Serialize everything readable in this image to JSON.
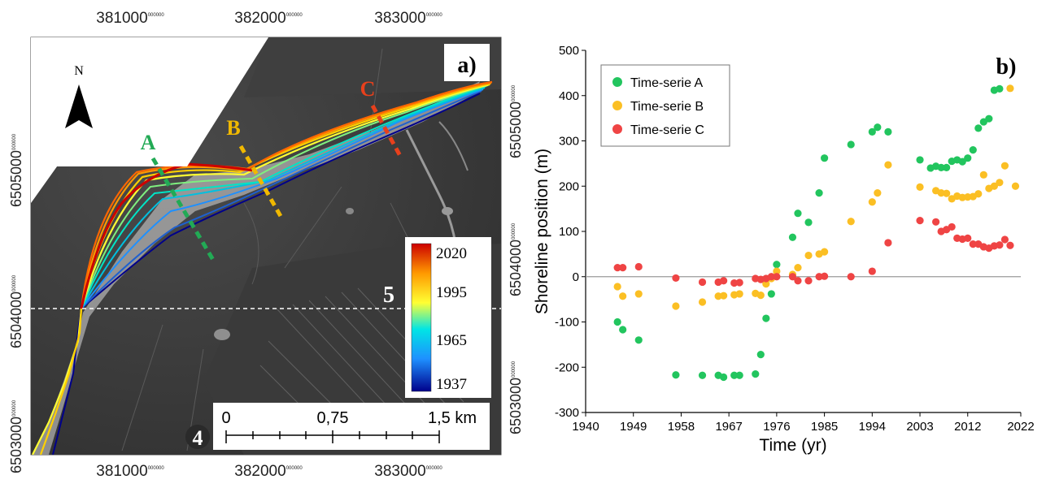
{
  "map": {
    "panel_label": "a)",
    "north_label": "N",
    "x_ticks": [
      {
        "main": "381000",
        "sup": "000000"
      },
      {
        "main": "382000",
        "sup": "000000"
      },
      {
        "main": "383000",
        "sup": "000000"
      }
    ],
    "y_ticks": [
      {
        "main": "6505000",
        "sup": "000000"
      },
      {
        "main": "6504000",
        "sup": "000000"
      },
      {
        "main": "6503000",
        "sup": "000000"
      }
    ],
    "transects": [
      {
        "label": "A",
        "color": "#22aa55"
      },
      {
        "label": "B",
        "color": "#f0b800"
      },
      {
        "label": "C",
        "color": "#e8401c"
      }
    ],
    "colorbar": {
      "ticks": [
        "2020",
        "1995",
        "1965",
        "1937"
      ],
      "colors": [
        "#00008b",
        "#1e90ff",
        "#00e5e5",
        "#ffff33",
        "#ff9900",
        "#cc0000"
      ]
    },
    "scalebar": {
      "labels": [
        "0",
        "0,75",
        "1,5 km"
      ]
    },
    "zone_labels": [
      "5",
      "4"
    ]
  },
  "chart_data": {
    "type": "scatter",
    "title": "b)",
    "xlabel": "Time (yr)",
    "ylabel": "Shoreline position (m)",
    "xlim": [
      1940,
      2022
    ],
    "ylim": [
      -300,
      500
    ],
    "x_ticks": [
      "1940",
      "1949",
      "1958",
      "1967",
      "1976",
      "1985",
      "1994",
      "2003",
      "2012",
      "2022"
    ],
    "y_ticks": [
      "-300",
      "-200",
      "-100",
      "0",
      "100",
      "200",
      "300",
      "400",
      "500"
    ],
    "zero_line": true,
    "legend_position": "top-left",
    "series": [
      {
        "name": "Time-serie A",
        "color": "#22c55e",
        "x": [
          1946,
          1947,
          1950,
          1957,
          1962,
          1965,
          1966,
          1968,
          1969,
          1972,
          1973,
          1974,
          1975,
          1976,
          1979,
          1980,
          1982,
          1984,
          1985,
          1990,
          1994,
          1995,
          1997,
          2003,
          2005,
          2006,
          2007,
          2008,
          2009,
          2010,
          2011,
          2012,
          2013,
          2014,
          2015,
          2016,
          2017,
          2018
        ],
        "y": [
          -100,
          -117,
          -140,
          -217,
          -218,
          -218,
          -222,
          -218,
          -218,
          -215,
          -172,
          -92,
          -38,
          27,
          87,
          140,
          120,
          185,
          262,
          292,
          320,
          330,
          320,
          258,
          240,
          244,
          241,
          241,
          255,
          258,
          254,
          262,
          280,
          328,
          342,
          349,
          412,
          415
        ]
      },
      {
        "name": "Time-serie B",
        "color": "#fbbf24",
        "x": [
          1946,
          1947,
          1950,
          1957,
          1962,
          1965,
          1966,
          1968,
          1969,
          1972,
          1973,
          1974,
          1975,
          1976,
          1979,
          1980,
          1982,
          1984,
          1985,
          1990,
          1994,
          1995,
          1997,
          2003,
          2006,
          2007,
          2008,
          2009,
          2010,
          2011,
          2012,
          2013,
          2014,
          2015,
          2016,
          2017,
          2018,
          2019,
          2020,
          2021
        ],
        "y": [
          -22,
          -43,
          -38,
          -65,
          -56,
          -43,
          -42,
          -40,
          -38,
          -37,
          -41,
          -16,
          -4,
          12,
          5,
          20,
          47,
          50,
          55,
          122,
          165,
          185,
          247,
          198,
          190,
          185,
          184,
          172,
          178,
          175,
          176,
          177,
          183,
          225,
          195,
          200,
          208,
          245,
          416,
          200
        ]
      },
      {
        "name": "Time-serie C",
        "color": "#ef4444",
        "x": [
          1946,
          1947,
          1950,
          1957,
          1962,
          1965,
          1966,
          1968,
          1969,
          1972,
          1973,
          1974,
          1975,
          1976,
          1979,
          1980,
          1982,
          1984,
          1985,
          1990,
          1994,
          1997,
          2003,
          2006,
          2007,
          2008,
          2009,
          2010,
          2011,
          2012,
          2013,
          2014,
          2015,
          2016,
          2017,
          2018,
          2019,
          2020
        ],
        "y": [
          20,
          20,
          22,
          -3,
          -12,
          -12,
          -9,
          -14,
          -13,
          -4,
          -6,
          -4,
          0,
          0,
          0,
          -9,
          -9,
          0,
          1,
          0,
          12,
          75,
          124,
          121,
          100,
          104,
          110,
          85,
          83,
          85,
          72,
          72,
          66,
          63,
          68,
          70,
          82,
          69
        ]
      }
    ]
  }
}
